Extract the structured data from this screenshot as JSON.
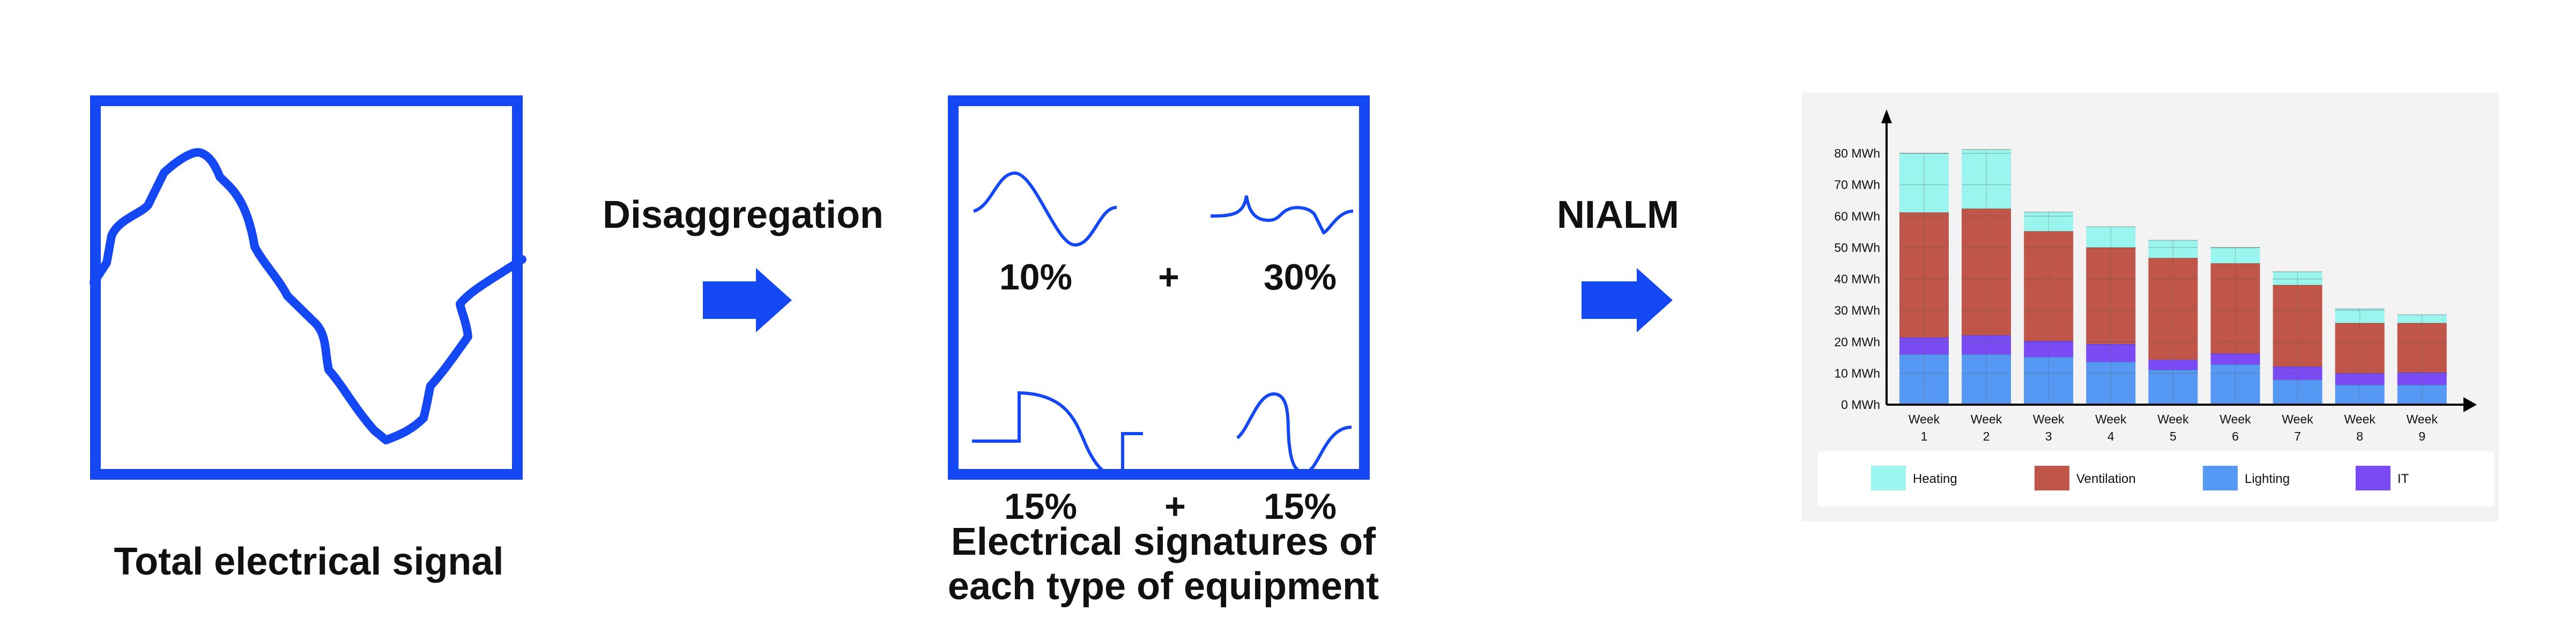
{
  "colors": {
    "blue": "#1448f5",
    "heating": "#9af5ee",
    "ventilation": "#c0554a",
    "lighting": "#5599f5",
    "it": "#7a4af5",
    "panel": "#f3f3f3"
  },
  "left": {
    "caption": "Total electrical signal"
  },
  "step1": {
    "label": "Disaggregation",
    "icon": "right-arrow-icon"
  },
  "middle": {
    "signatures": [
      {
        "percent": "10%"
      },
      {
        "percent": "30%"
      },
      {
        "percent": "15%"
      },
      {
        "percent": "15%"
      }
    ],
    "plus": "+",
    "caption_line1": "Electrical signatures of",
    "caption_line2": "each type of equipment"
  },
  "step2": {
    "label": "NIALM",
    "icon": "right-arrow-icon"
  },
  "chart_data": {
    "type": "bar",
    "stacked": true,
    "categories": [
      "Week 1",
      "Week 2",
      "Week 3",
      "Week 4",
      "Week 5",
      "Week 6",
      "Week 7",
      "Week 8",
      "Week 9"
    ],
    "category_lines": [
      [
        "Week",
        "1"
      ],
      [
        "Week",
        "2"
      ],
      [
        "Week",
        "3"
      ],
      [
        "Week",
        "4"
      ],
      [
        "Week",
        "5"
      ],
      [
        "Week",
        "6"
      ],
      [
        "Week",
        "7"
      ],
      [
        "Week",
        "8"
      ],
      [
        "Week",
        "9"
      ]
    ],
    "yticks": [
      "0 MWh",
      "10 MWh",
      "20 MWh",
      "30 MWh",
      "40 MWh",
      "50 MWh",
      "60 MWh",
      "70 MWh",
      "80 MWh"
    ],
    "ylim": [
      0,
      80
    ],
    "unit": "MWh",
    "series": [
      {
        "name": "Lighting",
        "key": "lighting",
        "values": [
          16.0,
          16.0,
          15.2,
          13.6,
          11.1,
          12.8,
          7.9,
          6.3,
          6.3
        ]
      },
      {
        "name": "IT",
        "key": "it",
        "values": [
          5.4,
          6.1,
          5.1,
          5.7,
          3.2,
          3.5,
          4.2,
          3.7,
          4.0
        ]
      },
      {
        "name": "Ventilation",
        "key": "ventilation",
        "values": [
          39.8,
          40.3,
          34.9,
          30.7,
          32.4,
          28.7,
          26.0,
          16.0,
          15.7
        ]
      },
      {
        "name": "Heating",
        "key": "heating",
        "values": [
          18.8,
          18.8,
          6.1,
          6.6,
          5.6,
          5.0,
          4.2,
          4.5,
          2.6
        ]
      }
    ],
    "legend": [
      "Heating",
      "Ventilation",
      "Lighting",
      "IT"
    ],
    "legend_position": "bottom"
  }
}
